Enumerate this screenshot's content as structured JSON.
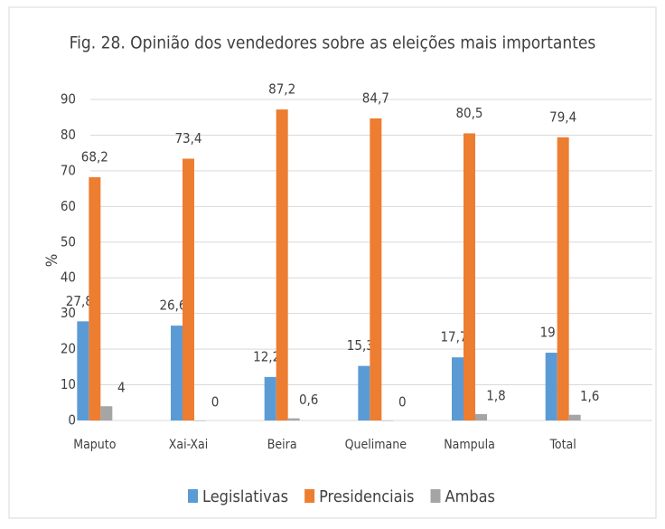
{
  "chart_data": {
    "type": "bar",
    "title": "Fig. 28. Opinião dos vendedores sobre as eleições mais importantes",
    "y_label": "%",
    "categories": [
      "Maputo",
      "Xai-Xai",
      "Beira",
      "Quelimane",
      "Nampula",
      "Total"
    ],
    "series": [
      {
        "name": "Legislativas",
        "color": "#5b9bd5",
        "values": [
          27.8,
          26.6,
          12.2,
          15.3,
          17.7,
          19
        ],
        "value_labels": [
          "27,8",
          "26,6",
          "12,2",
          "15,3",
          "17,7",
          "19"
        ]
      },
      {
        "name": "Presidenciais",
        "color": "#ed7d31",
        "values": [
          68.2,
          73.4,
          87.2,
          84.7,
          80.5,
          79.4
        ],
        "value_labels": [
          "68,2",
          "73,4",
          "87,2",
          "84,7",
          "80,5",
          "79,4"
        ]
      },
      {
        "name": "Ambas",
        "color": "#a5a5a5",
        "values": [
          4,
          0,
          0.6,
          0,
          1.8,
          1.6
        ],
        "value_labels": [
          "4",
          "0",
          "0,6",
          "0",
          "1,8",
          "1,6"
        ]
      }
    ],
    "ylim": [
      0,
      90
    ],
    "yticks": [
      0,
      10,
      20,
      30,
      40,
      50,
      60,
      70,
      80,
      90
    ],
    "grid": true,
    "legend": "bottom"
  }
}
